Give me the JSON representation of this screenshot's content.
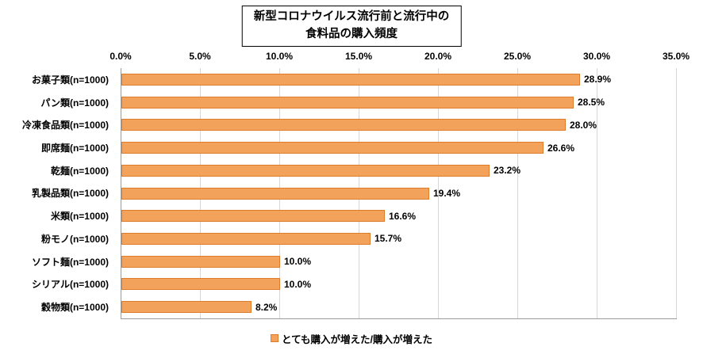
{
  "title": {
    "line1": "新型コロナウイルス流行前と流行中の",
    "line2": "食料品の購入頻度"
  },
  "legend": {
    "label": "とても購入が増えた/購入が増えた"
  },
  "colors": {
    "bar_fill": "#F3A25B",
    "bar_border": "#DD7C2A",
    "gridline": "#D6D6D6",
    "axis": "#9A9A9A"
  },
  "chart_data": {
    "type": "bar",
    "orientation": "horizontal",
    "title": "新型コロナウイルス流行前と流行中の食料品の購入頻度",
    "categories": [
      "お菓子類(n=1000)",
      "パン類(n=1000)",
      "冷凍食品類(n=1000)",
      "即席麺(n=1000)",
      "乾麺(n=1000)",
      "乳製品類(n=1000)",
      "米類(n=1000)",
      "粉モノ(n=1000)",
      "ソフト麺(n=1000)",
      "シリアル(n=1000)",
      "穀物類(n=1000)"
    ],
    "values": [
      28.9,
      28.5,
      28.0,
      26.6,
      23.2,
      19.4,
      16.6,
      15.7,
      10.0,
      10.0,
      8.2
    ],
    "value_labels": [
      "28.9%",
      "28.5%",
      "28.0%",
      "26.6%",
      "23.2%",
      "19.4%",
      "16.6%",
      "15.7%",
      "10.0%",
      "10.0%",
      "8.2%"
    ],
    "x_ticks": [
      "0.0%",
      "5.0%",
      "10.0%",
      "15.0%",
      "20.0%",
      "25.0%",
      "30.0%",
      "35.0%"
    ],
    "xlim": [
      0,
      35
    ],
    "tick_step": 5,
    "grid": true,
    "legend_entries": [
      "とても購入が増えた/購入が増えた"
    ],
    "legend_position": "bottom"
  }
}
